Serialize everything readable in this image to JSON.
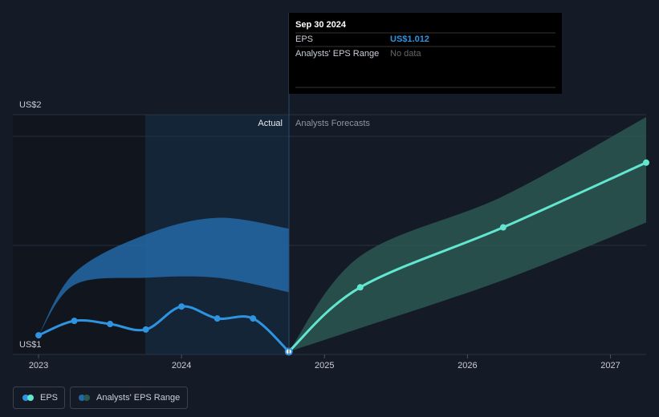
{
  "chart_data": {
    "type": "line",
    "xlim": [
      2022.82,
      2027.25
    ],
    "xticks": [
      2023,
      2024,
      2025,
      2026,
      2027
    ],
    "ylim": [
      1,
      2
    ],
    "yticks": [
      {
        "value": 1,
        "label": "US$1"
      },
      {
        "value": 2,
        "label": "US$2"
      }
    ],
    "annotations": [
      "Actual",
      "Analysts Forecasts"
    ],
    "series": [
      {
        "name": "EPS",
        "color": "#2f94e0",
        "x": [
          2023.0,
          2023.25,
          2023.5,
          2023.75,
          2024.0,
          2024.25,
          2024.5,
          2024.75
        ],
        "values": [
          1.08,
          1.14,
          1.127,
          1.104,
          1.2,
          1.15,
          1.15,
          1.012
        ]
      },
      {
        "color": "#62e6cf",
        "x": [
          2024.75,
          2025.25,
          2026.25,
          2027.25
        ],
        "values": [
          1.012,
          1.28,
          1.53,
          1.8
        ]
      }
    ],
    "ranges": [
      {
        "name": "Analysts' EPS Range",
        "color": "#2368a6",
        "x": [
          2023.0,
          2023.25,
          2023.75,
          2024.25,
          2024.75
        ],
        "upper": [
          1.08,
          1.34,
          1.5,
          1.57,
          1.525
        ],
        "lower": [
          1.08,
          1.29,
          1.32,
          1.32,
          1.26
        ]
      },
      {
        "color": "#2b5753",
        "x": [
          2024.75,
          2025.25,
          2026.25,
          2027.25
        ],
        "upper": [
          1.012,
          1.41,
          1.66,
          1.99
        ],
        "lower": [
          1.012,
          1.11,
          1.31,
          1.55
        ]
      }
    ],
    "tooltip": {
      "date": "Sep 30 2024",
      "rows": [
        {
          "label": "EPS",
          "value": "US$1.012"
        },
        {
          "label": "Analysts' EPS Range",
          "value": "No data"
        }
      ]
    }
  }
}
